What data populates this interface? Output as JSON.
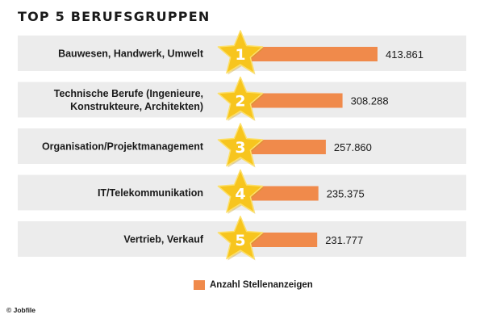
{
  "chart_data": {
    "type": "bar",
    "orientation": "horizontal",
    "title": "TOP 5 BERUFSGRUPPEN",
    "categories": [
      [
        "Bauwesen, Handwerk, Umwelt"
      ],
      [
        "Technische Berufe (Ingenieure,",
        "Konstrukteure, Architekten)"
      ],
      [
        "Organisation/Projektmanagement"
      ],
      [
        "IT/Telekommunikation"
      ],
      [
        "Vertrieb, Verkauf"
      ]
    ],
    "ranks": [
      "1",
      "2",
      "3",
      "4",
      "5"
    ],
    "values": [
      413861,
      308288,
      257860,
      235375,
      231777
    ],
    "value_labels": [
      "413.861",
      "308.288",
      "257.860",
      "235.375",
      "231.777"
    ],
    "legend": "Anzahl Stellenanzeigen",
    "grid": false,
    "legend_position": "bottom",
    "colors": {
      "bar": "#f08a4b",
      "row_band": "#ececec",
      "star": "#f7c51e",
      "star_highlight": "#fde06a"
    }
  },
  "footer": {
    "copyright": "© Jobfile"
  }
}
